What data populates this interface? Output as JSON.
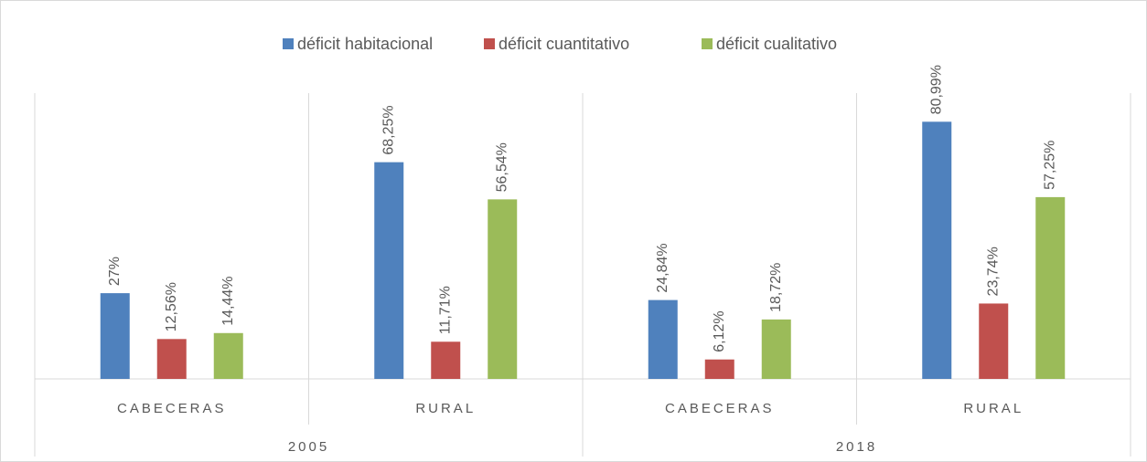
{
  "chart_data": {
    "type": "bar",
    "categories": [
      "CABECERAS",
      "RURAL",
      "CABECERAS",
      "RURAL"
    ],
    "groups": [
      "2005",
      "2018"
    ],
    "series": [
      {
        "name": "déficit habitacional",
        "color": "#4f81bd",
        "values": [
          27,
          68.25,
          24.84,
          80.99
        ],
        "value_labels": [
          "27%",
          "68,25%",
          "24,84%",
          "80,99%"
        ]
      },
      {
        "name": "déficit cuantitativo",
        "color": "#c0504d",
        "values": [
          12.56,
          11.71,
          6.12,
          23.74
        ],
        "value_labels": [
          "12,56%",
          "11,71%",
          "6,12%",
          "23,74%"
        ]
      },
      {
        "name": "déficit cualitativo",
        "color": "#9bbb59",
        "values": [
          14.44,
          56.54,
          18.72,
          57.25
        ],
        "value_labels": [
          "14,44%",
          "56,54%",
          "18,72%",
          "57,25%"
        ]
      }
    ],
    "ylim": [
      0,
      90
    ],
    "legend": "top"
  }
}
